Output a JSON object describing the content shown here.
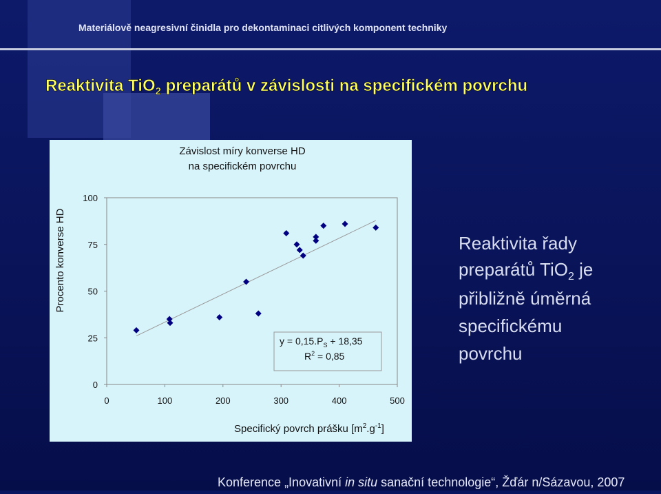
{
  "header": {
    "text": "Materiálově neagresivní činidla pro dekontaminaci citlivých komponent techniky"
  },
  "slide_title": {
    "before": "Reaktivita TiO",
    "sub": "2",
    "after": " preparátů v závislosti na specifickém povrchu"
  },
  "chart_data": {
    "type": "scatter",
    "title": [
      "Závislost míry konverse HD",
      "na specifickém povrchu"
    ],
    "y_label": "Procento konverse HD",
    "x_label": {
      "before": "Specifický povrch prášku [m",
      "sup1": "2",
      "mid": ".g",
      "sup2": "-1",
      "after": "]"
    },
    "x": [
      51,
      108,
      109,
      194,
      240,
      261,
      309,
      327,
      332,
      338,
      360,
      360,
      373,
      410,
      463
    ],
    "values": [
      29,
      35,
      33,
      36,
      55,
      38,
      81,
      75,
      72,
      69,
      79,
      77,
      85,
      86,
      84
    ],
    "color": "#000080",
    "xlim": [
      0,
      500
    ],
    "xticks": [
      0,
      100,
      200,
      300,
      400,
      500
    ],
    "ylim": [
      0,
      100
    ],
    "yticks": [
      0,
      25,
      50,
      75,
      100
    ],
    "trendline": {
      "slope": 0.15,
      "intercept": 18.35,
      "x": [
        51,
        463
      ],
      "eq_before": "y = 0,15.P",
      "eq_sub": "S",
      "eq_after": " + 18,35",
      "r_before": "R",
      "r_sup": "2",
      "r_after": " = 0,85"
    }
  },
  "side_text": {
    "line1": "Reaktivita řady",
    "line2_before": "preparátů TiO",
    "line2_sub": "2",
    "line2_after": " je",
    "line3": "přibližně úměrná",
    "line4": "specifickému",
    "line5": "povrchu"
  },
  "footer": {
    "before": "Konference „Inovativní ",
    "italic": "in situ",
    "after": " sanační technologie“, Žďár n/Sázavou, 2007"
  }
}
